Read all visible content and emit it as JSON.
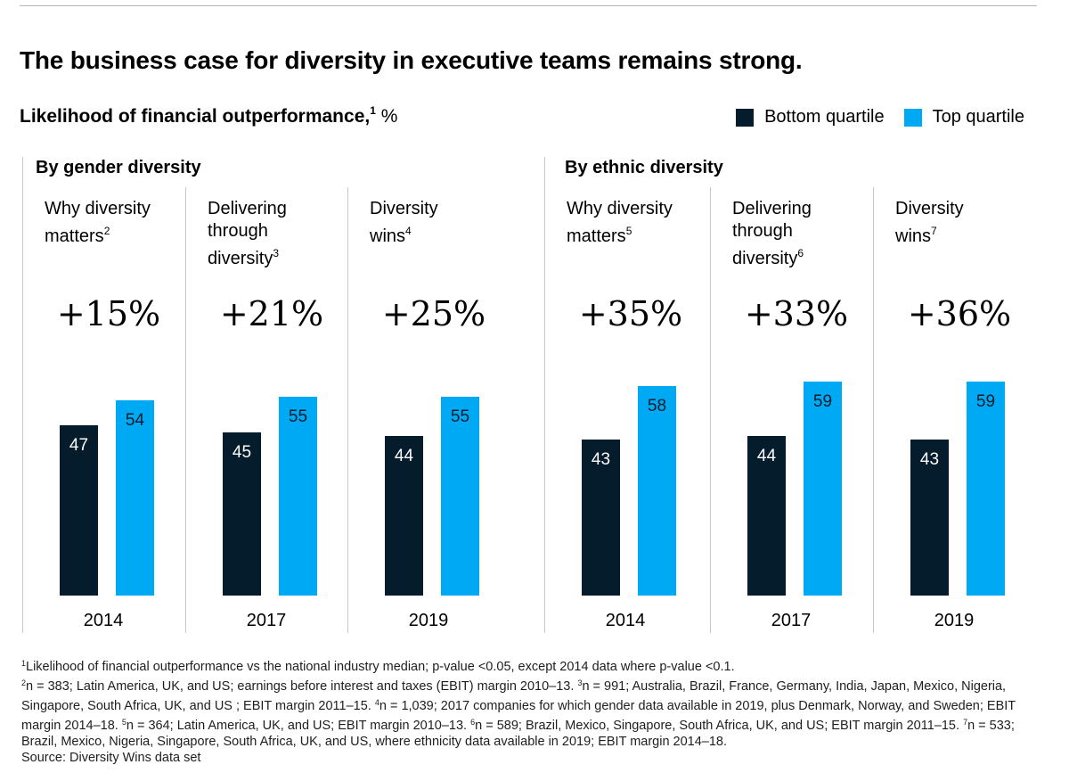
{
  "title": "The business case for diversity in executive teams remains strong.",
  "subtitle": {
    "text": "Likelihood of financial outperformance,",
    "footnote": "1",
    "unit": "%"
  },
  "legend": [
    {
      "label": "Bottom quartile",
      "color": "#051c2c"
    },
    {
      "label": "Top quartile",
      "color": "#00a9f4"
    }
  ],
  "colors": {
    "bottom": "#051c2c",
    "top": "#00a9f4",
    "divider": "#c8c8c8",
    "value_on_top": "#051c2c",
    "value_on_bottom": "#ffffff"
  },
  "groups": [
    {
      "name": "By gender diversity"
    },
    {
      "name": "By ethnic diversity"
    }
  ],
  "chart_data": {
    "type": "bar",
    "title": "Likelihood of financial outperformance, %",
    "ylim": [
      0,
      100
    ],
    "series_names": [
      "Bottom quartile",
      "Top quartile"
    ],
    "panels": [
      {
        "group": "By gender diversity",
        "label_lines": [
          "Why diversity",
          "matters"
        ],
        "footnote": "2",
        "difference": "+15%",
        "year": "2014",
        "bottom": 47,
        "top": 54
      },
      {
        "group": "By gender diversity",
        "label_lines": [
          "Delivering",
          "through",
          "diversity"
        ],
        "footnote": "3",
        "difference": "+21%",
        "year": "2017",
        "bottom": 45,
        "top": 55
      },
      {
        "group": "By gender diversity",
        "label_lines": [
          "Diversity",
          "wins"
        ],
        "footnote": "4",
        "difference": "+25%",
        "year": "2019",
        "bottom": 44,
        "top": 55
      },
      {
        "group": "By ethnic diversity",
        "label_lines": [
          "Why diversity",
          "matters"
        ],
        "footnote": "5",
        "difference": "+35%",
        "year": "2014",
        "bottom": 43,
        "top": 58
      },
      {
        "group": "By ethnic diversity",
        "label_lines": [
          "Delivering",
          "through",
          "diversity"
        ],
        "footnote": "6",
        "difference": "+33%",
        "year": "2017",
        "bottom": 44,
        "top": 59
      },
      {
        "group": "By ethnic diversity",
        "label_lines": [
          "Diversity",
          "wins"
        ],
        "footnote": "7",
        "difference": "+36%",
        "year": "2019",
        "bottom": 43,
        "top": 59
      }
    ]
  },
  "footnotes": [
    {
      "num": "1",
      "text": "Likelihood of financial outperformance vs the national industry median; p-value <0.05, except 2014 data where p-value <0.1."
    },
    {
      "num": "2",
      "text": "n = 383; Latin America, UK, and US; earnings before interest and taxes (EBIT) margin 2010–13. "
    },
    {
      "num": "3",
      "text": "n = 991; Australia, Brazil, France, Germany, India, Japan, Mexico, Nigeria, Singapore, South Africa, UK, and US ; EBIT margin 2011–15. "
    },
    {
      "num": "4",
      "text": "n = 1,039; 2017 companies for which gender data available in 2019, plus Denmark, Norway, and Sweden;  EBIT margin 2014–18. "
    },
    {
      "num": "5",
      "text": "n = 364; Latin America, UK, and US; EBIT margin 2010–13. "
    },
    {
      "num": "6",
      "text": "n = 589; Brazil, Mexico, Singapore, South Africa, UK, and US; EBIT margin 2011–15. "
    },
    {
      "num": "7",
      "text": "n = 533; Brazil, Mexico, Nigeria, Singapore, South Africa, UK, and US, where ethnicity data available in 2019; EBIT margin 2014–18."
    }
  ],
  "source": "Source: Diversity Wins data set"
}
